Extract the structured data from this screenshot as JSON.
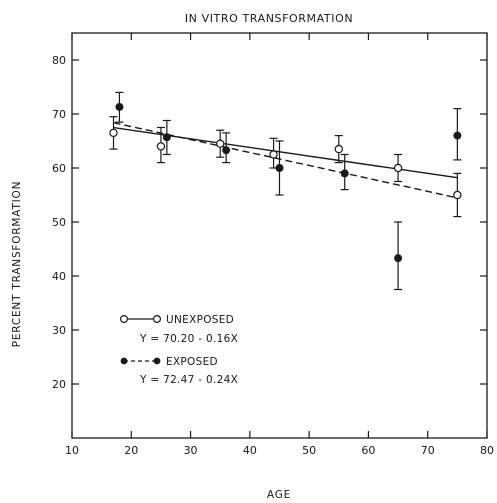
{
  "chart_data": {
    "type": "scatter",
    "title": "IN VITRO TRANSFORMATION",
    "xlabel": "AGE",
    "ylabel": "PERCENT TRANSFORMATION",
    "xlim": [
      10,
      80
    ],
    "ylim": [
      10,
      85
    ],
    "xticks": [
      10,
      20,
      30,
      40,
      50,
      60,
      70,
      80
    ],
    "yticks": [
      20,
      30,
      40,
      50,
      60,
      70,
      80
    ],
    "grid": false,
    "legend_position": "lower-left",
    "series": [
      {
        "name": "UNEXPOSED",
        "marker": "open-circle",
        "line_style": "solid",
        "points": [
          {
            "x": 17,
            "y": 66.5,
            "err_low": 63.5,
            "err_high": 69.5
          },
          {
            "x": 25,
            "y": 64,
            "err_low": 61,
            "err_high": 67.5
          },
          {
            "x": 35,
            "y": 64.5,
            "err_low": 62,
            "err_high": 67
          },
          {
            "x": 44,
            "y": 62.5,
            "err_low": 60,
            "err_high": 65.5
          },
          {
            "x": 55,
            "y": 63.5,
            "err_low": 61,
            "err_high": 66
          },
          {
            "x": 65,
            "y": 60,
            "err_low": 57.5,
            "err_high": 62.5
          },
          {
            "x": 75,
            "y": 55,
            "err_low": 51,
            "err_high": 59
          }
        ],
        "fit": {
          "equation": "Y = 70.20 - 0.16X",
          "intercept": 70.2,
          "slope": -0.16,
          "x_range": [
            17,
            75
          ]
        }
      },
      {
        "name": "EXPOSED",
        "marker": "filled-circle",
        "line_style": "dashed",
        "points": [
          {
            "x": 18,
            "y": 71.3,
            "err_low": 68.5,
            "err_high": 74
          },
          {
            "x": 26,
            "y": 65.7,
            "err_low": 62.5,
            "err_high": 68.8
          },
          {
            "x": 36,
            "y": 63.3,
            "err_low": 61,
            "err_high": 66.5
          },
          {
            "x": 45,
            "y": 60,
            "err_low": 55,
            "err_high": 65
          },
          {
            "x": 56,
            "y": 59,
            "err_low": 56,
            "err_high": 62.5
          },
          {
            "x": 65,
            "y": 43.3,
            "err_low": 37.5,
            "err_high": 50
          },
          {
            "x": 75,
            "y": 66,
            "err_low": 61.5,
            "err_high": 71
          }
        ],
        "fit": {
          "equation": "Y = 72.47 - 0.24X",
          "intercept": 72.47,
          "slope": -0.24,
          "x_range": [
            17,
            75
          ]
        }
      }
    ],
    "legend": {
      "unexposed_label": "UNEXPOSED",
      "unexposed_equation": "Y = 70.20 - 0.16X",
      "exposed_label": "EXPOSED",
      "exposed_equation": "Y = 72.47 - 0.24X"
    }
  }
}
